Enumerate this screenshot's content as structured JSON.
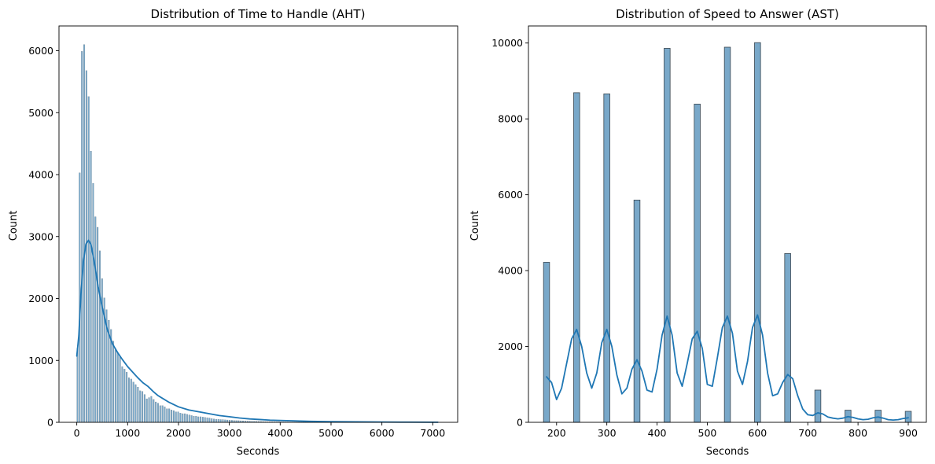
{
  "chart_data": [
    {
      "type": "histogram",
      "title": "Distribution of Time to Handle (AHT)",
      "xlabel": "Seconds",
      "ylabel": "Count",
      "xlim": [
        -350,
        7490
      ],
      "ylim": [
        0,
        6400
      ],
      "xticks": [
        0,
        1000,
        2000,
        3000,
        4000,
        5000,
        6000,
        7000
      ],
      "yticks": [
        0,
        1000,
        2000,
        3000,
        4000,
        5000,
        6000
      ],
      "bin_width": 44,
      "bin_values": [
        1190,
        4030,
        5990,
        6100,
        5680,
        5260,
        4380,
        3860,
        3320,
        3150,
        2770,
        2320,
        2010,
        1820,
        1650,
        1500,
        1310,
        1170,
        1120,
        1060,
        900,
        860,
        810,
        720,
        700,
        650,
        610,
        570,
        510,
        500,
        450,
        380,
        400,
        420,
        370,
        330,
        310,
        270,
        270,
        250,
        220,
        220,
        200,
        190,
        170,
        170,
        150,
        140,
        140,
        130,
        120,
        110,
        100,
        100,
        90,
        90,
        85,
        80,
        75,
        70,
        60,
        55,
        50,
        50,
        45,
        45,
        40,
        38,
        35,
        33,
        30,
        28,
        27,
        25,
        24,
        22,
        20,
        19,
        18,
        16,
        15,
        14,
        13,
        12,
        11,
        10,
        10,
        9,
        9,
        8,
        8,
        7,
        7,
        6,
        6,
        5,
        5,
        5,
        4,
        4,
        4,
        3,
        3,
        3,
        3,
        2,
        2,
        2,
        2,
        2,
        2,
        2,
        1,
        1,
        1,
        1,
        1,
        1,
        1,
        1,
        1,
        1,
        1,
        1,
        1,
        1,
        1,
        1,
        1,
        1,
        1,
        1,
        1,
        1,
        1,
        1,
        1,
        1,
        1,
        1,
        1,
        1,
        1,
        1,
        1,
        1,
        1,
        1,
        1,
        1,
        1,
        1,
        1,
        1,
        1,
        1,
        1,
        1,
        1,
        1,
        1,
        1
      ],
      "kde": {
        "x": [
          0,
          40,
          80,
          130,
          180,
          230,
          280,
          350,
          420,
          500,
          600,
          700,
          800,
          900,
          1000,
          1100,
          1200,
          1300,
          1400,
          1500,
          1600,
          1700,
          1800,
          1900,
          2000,
          2200,
          2400,
          2600,
          2800,
          3000,
          3200,
          3400,
          3600,
          3800,
          4000,
          4200,
          4400,
          4600,
          5000,
          5500,
          6000,
          6500,
          7100
        ],
        "y": [
          1070,
          1400,
          2050,
          2600,
          2880,
          2940,
          2870,
          2560,
          2190,
          1860,
          1500,
          1270,
          1130,
          1010,
          900,
          810,
          720,
          640,
          580,
          500,
          430,
          380,
          330,
          290,
          250,
          200,
          170,
          140,
          110,
          90,
          70,
          55,
          45,
          35,
          30,
          25,
          20,
          15,
          10,
          7,
          5,
          3,
          2
        ]
      }
    },
    {
      "type": "histogram",
      "title": "Distribution of Speed to Answer (AST)",
      "xlabel": "Seconds",
      "ylabel": "Count",
      "xlim": [
        144,
        936
      ],
      "ylim": [
        0,
        10450
      ],
      "xticks": [
        200,
        300,
        400,
        500,
        600,
        700,
        800,
        900
      ],
      "yticks": [
        0,
        2000,
        4000,
        6000,
        8000,
        10000
      ],
      "bin_width": 12,
      "bins": [
        {
          "x": 180,
          "value": 4220
        },
        {
          "x": 240,
          "value": 8690
        },
        {
          "x": 300,
          "value": 8660
        },
        {
          "x": 360,
          "value": 5860
        },
        {
          "x": 420,
          "value": 9860
        },
        {
          "x": 480,
          "value": 8390
        },
        {
          "x": 540,
          "value": 9890
        },
        {
          "x": 600,
          "value": 10010
        },
        {
          "x": 660,
          "value": 4450
        },
        {
          "x": 720,
          "value": 850
        },
        {
          "x": 780,
          "value": 320
        },
        {
          "x": 840,
          "value": 320
        },
        {
          "x": 900,
          "value": 290
        }
      ],
      "kde": {
        "x": [
          180,
          190,
          200,
          210,
          220,
          230,
          240,
          250,
          260,
          270,
          280,
          290,
          300,
          310,
          320,
          330,
          340,
          350,
          360,
          370,
          380,
          390,
          400,
          410,
          420,
          430,
          440,
          450,
          460,
          470,
          480,
          490,
          500,
          510,
          520,
          530,
          540,
          550,
          560,
          570,
          580,
          590,
          600,
          610,
          620,
          630,
          640,
          650,
          660,
          670,
          680,
          690,
          700,
          710,
          720,
          730,
          740,
          750,
          760,
          770,
          780,
          790,
          800,
          810,
          820,
          830,
          840,
          850,
          860,
          870,
          880,
          890,
          900
        ],
        "y": [
          1200,
          1050,
          600,
          900,
          1550,
          2200,
          2450,
          2000,
          1300,
          900,
          1300,
          2100,
          2450,
          2000,
          1250,
          750,
          900,
          1400,
          1650,
          1350,
          850,
          800,
          1400,
          2300,
          2800,
          2300,
          1300,
          950,
          1550,
          2200,
          2400,
          1950,
          1000,
          950,
          1700,
          2500,
          2800,
          2350,
          1350,
          1000,
          1600,
          2500,
          2830,
          2300,
          1300,
          700,
          750,
          1050,
          1260,
          1150,
          700,
          350,
          200,
          180,
          250,
          220,
          140,
          110,
          90,
          110,
          150,
          130,
          90,
          70,
          80,
          120,
          140,
          110,
          70,
          60,
          70,
          100,
          120
        ]
      }
    }
  ]
}
